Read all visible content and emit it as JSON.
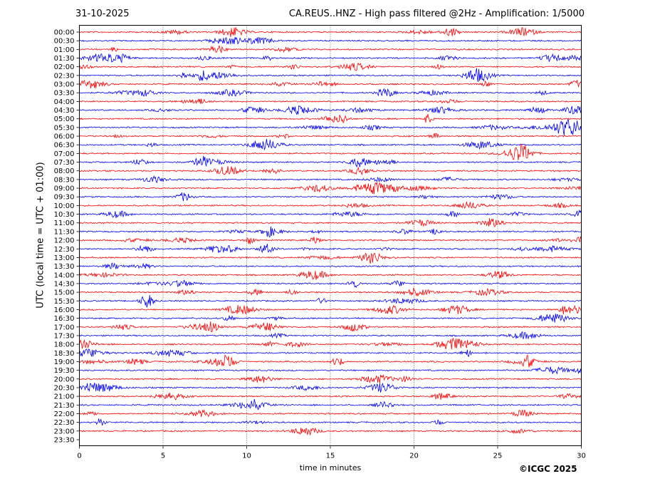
{
  "header": {
    "date": "31-10-2025",
    "station_title": "CA.REUS..HNZ - High pass filtered @2Hz - Amplification: 1/5000"
  },
  "credit": "©ICGC 2025",
  "chart_data": {
    "type": "line",
    "title": "CA.REUS..HNZ - High pass filtered @2Hz - Amplification: 1/5000",
    "date": "31-10-2025",
    "xlabel": "time in minutes",
    "ylabel": "UTC (local time = UTC + 01:00)",
    "xlim": [
      0,
      30
    ],
    "xticks": [
      0,
      5,
      10,
      15,
      20,
      25,
      30
    ],
    "row_labels": [
      "00:00",
      "00:30",
      "01:00",
      "01:30",
      "02:00",
      "02:30",
      "03:00",
      "03:30",
      "04:00",
      "04:30",
      "05:00",
      "05:30",
      "06:00",
      "06:30",
      "07:00",
      "07:30",
      "08:00",
      "08:30",
      "09:00",
      "09:30",
      "10:00",
      "10:30",
      "11:00",
      "11:30",
      "12:00",
      "12:30",
      "13:00",
      "13:30",
      "14:00",
      "14:30",
      "15:00",
      "15:30",
      "16:00",
      "16:30",
      "17:00",
      "17:30",
      "18:00",
      "18:30",
      "19:00",
      "19:30",
      "20:00",
      "20:30",
      "21:00",
      "21:30",
      "22:00",
      "22:30",
      "23:00",
      "23:30"
    ],
    "trace_colors": [
      "#ff0000",
      "#0000ff"
    ],
    "grid_x": [
      5,
      10,
      15,
      20,
      25
    ],
    "grid_style": "dotted",
    "last_trace_end_minute": 30
  }
}
